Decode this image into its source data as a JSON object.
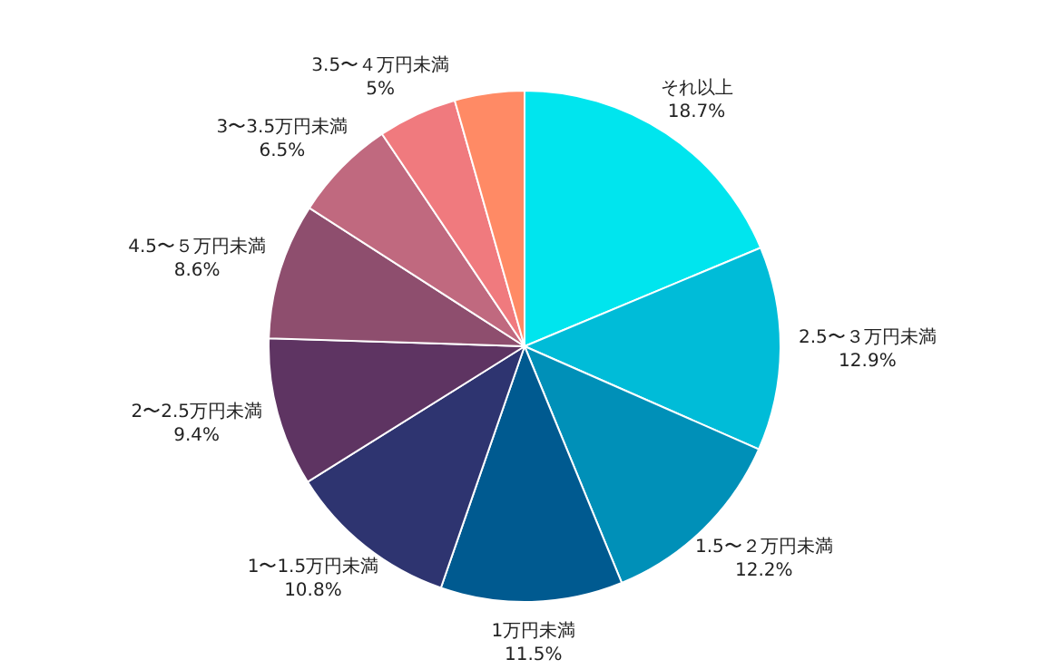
{
  "chart_data": {
    "type": "pie",
    "categories": [
      "それ以上",
      "2.5〜３万円未満",
      "1.5〜２万円未満",
      "1万円未満",
      "1〜1.5万円未満",
      "2〜2.5万円未満",
      "4.5〜５万円未満",
      "3〜3.5万円未満",
      "3.5〜４万円未満",
      null
    ],
    "values": [
      18.7,
      12.9,
      12.2,
      11.5,
      10.8,
      9.4,
      8.6,
      6.5,
      5,
      4.4
    ],
    "value_labels": [
      "18.7%",
      "12.9%",
      "12.2%",
      "11.5%",
      "10.8%",
      "9.4%",
      "8.6%",
      "6.5%",
      "5%",
      null
    ],
    "colors": [
      "#00e5ee",
      "#00bcd8",
      "#0090b8",
      "#005a90",
      "#2e3470",
      "#5e3462",
      "#8e4e6e",
      "#c0697f",
      "#f07a7e",
      "#ff8a65"
    ]
  }
}
